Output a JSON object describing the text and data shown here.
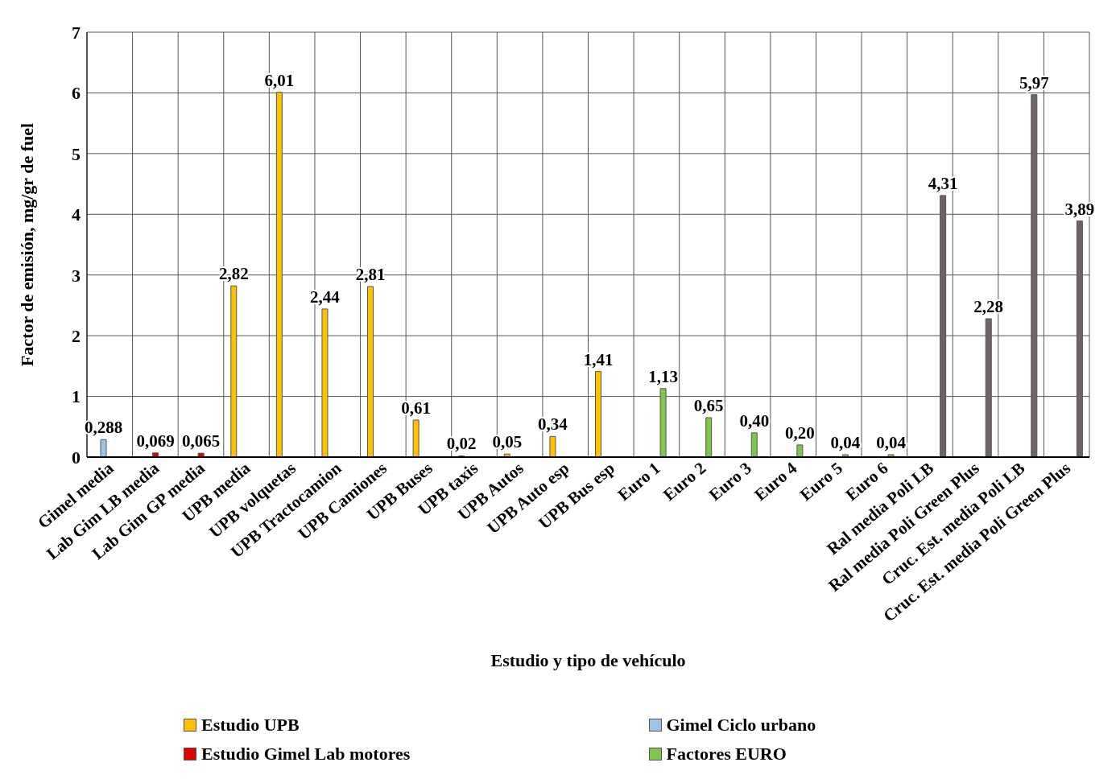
{
  "chart_data": {
    "type": "bar",
    "xlabel": "Estudio y tipo de vehículo",
    "ylabel": "Factor de emisión, mg/gr de fuel",
    "categories": [
      "Gimel  media",
      "Lab Gim LB media",
      "Lab Gim GP media",
      "UPB media",
      "UPB volquetas",
      "UPB Tractocamion",
      "UPB Camiones",
      "UPB Buses",
      "UPB taxis",
      "UPB Autos",
      "UPB Auto esp",
      "UPB Bus esp",
      "Euro 1",
      "Euro 2",
      "Euro 3",
      "Euro 4",
      "Euro 5",
      "Euro 6",
      "Ral media Poli LB",
      "Ral media Poli Green Plus",
      "Cruc. Est. media Poli LB",
      "Cruc. Est. media Poli Green Plus"
    ],
    "series": [
      {
        "name": "Estudio UPB",
        "color": "#ffc000",
        "values": [
          null,
          null,
          null,
          2.82,
          6.01,
          2.44,
          2.81,
          0.61,
          0.02,
          0.05,
          0.34,
          1.41,
          null,
          null,
          null,
          null,
          null,
          null,
          null,
          null,
          null,
          null
        ],
        "value_labels": [
          null,
          null,
          null,
          "2,82",
          "6,01",
          "2,44",
          "2,81",
          "0,61",
          "0,02",
          "0,05",
          "0,34",
          "1,41",
          null,
          null,
          null,
          null,
          null,
          null,
          null,
          null,
          null,
          null
        ]
      },
      {
        "name": "Gimel Ciclo urbano",
        "color": "#9dc3e6",
        "values": [
          0.288,
          null,
          null,
          null,
          null,
          null,
          null,
          null,
          null,
          null,
          null,
          null,
          null,
          null,
          null,
          null,
          null,
          null,
          null,
          null,
          null,
          null
        ],
        "value_labels": [
          "0,288",
          null,
          null,
          null,
          null,
          null,
          null,
          null,
          null,
          null,
          null,
          null,
          null,
          null,
          null,
          null,
          null,
          null,
          null,
          null,
          null,
          null
        ]
      },
      {
        "name": "Estudio  Gimel Lab motores",
        "color": "#e00000",
        "values": [
          null,
          0.069,
          0.065,
          null,
          null,
          null,
          null,
          null,
          null,
          null,
          null,
          null,
          null,
          null,
          null,
          null,
          null,
          null,
          null,
          null,
          null,
          null
        ],
        "value_labels": [
          null,
          "0,069",
          "0,065",
          null,
          null,
          null,
          null,
          null,
          null,
          null,
          null,
          null,
          null,
          null,
          null,
          null,
          null,
          null,
          null,
          null,
          null,
          null
        ]
      },
      {
        "name": "Factores EURO",
        "color": "#7fc64c",
        "values": [
          null,
          null,
          null,
          null,
          null,
          null,
          null,
          null,
          null,
          null,
          null,
          null,
          1.13,
          0.65,
          0.4,
          0.2,
          0.04,
          0.04,
          null,
          null,
          null,
          null
        ],
        "value_labels": [
          null,
          null,
          null,
          null,
          null,
          null,
          null,
          null,
          null,
          null,
          null,
          null,
          "1,13",
          "0,65",
          "0,40",
          "0,20",
          "0,04",
          "0,04",
          null,
          null,
          null,
          null
        ]
      },
      {
        "color": "#6d6466",
        "values": [
          null,
          null,
          null,
          null,
          null,
          null,
          null,
          null,
          null,
          null,
          null,
          null,
          null,
          null,
          null,
          null,
          null,
          null,
          4.31,
          2.28,
          5.97,
          3.89
        ],
        "value_labels": [
          null,
          null,
          null,
          null,
          null,
          null,
          null,
          null,
          null,
          null,
          null,
          null,
          null,
          null,
          null,
          null,
          null,
          null,
          "4,31",
          "2,28",
          "5,97",
          "3,89"
        ]
      }
    ],
    "ylim": [
      0,
      7
    ],
    "yticks": [
      0,
      1,
      2,
      3,
      4,
      5,
      6,
      7
    ],
    "grid": true,
    "legend": "bottom"
  }
}
